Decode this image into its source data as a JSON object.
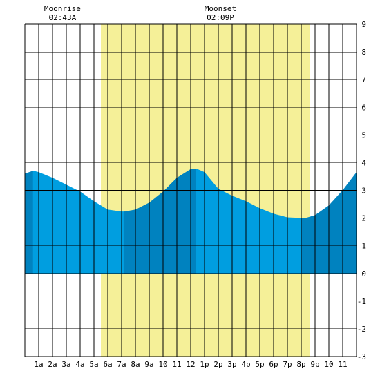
{
  "chart_data": {
    "type": "area",
    "title": "",
    "xlabel": "",
    "ylabel": "",
    "x_range": [
      0,
      24
    ],
    "ylim": [
      -3,
      9
    ],
    "y_ticks": [
      9,
      8,
      7,
      6,
      5,
      4,
      3,
      2,
      1,
      0,
      -1,
      -2,
      -3
    ],
    "x_tick_labels": [
      {
        "hour": 1,
        "label": "1a"
      },
      {
        "hour": 2,
        "label": "2a"
      },
      {
        "hour": 3,
        "label": "3a"
      },
      {
        "hour": 4,
        "label": "4a"
      },
      {
        "hour": 5,
        "label": "5a"
      },
      {
        "hour": 6,
        "label": "6a"
      },
      {
        "hour": 7,
        "label": "7a"
      },
      {
        "hour": 8,
        "label": "8a"
      },
      {
        "hour": 9,
        "label": "9a"
      },
      {
        "hour": 10,
        "label": "10"
      },
      {
        "hour": 11,
        "label": "11"
      },
      {
        "hour": 12,
        "label": "12"
      },
      {
        "hour": 13,
        "label": "1p"
      },
      {
        "hour": 14,
        "label": "2p"
      },
      {
        "hour": 15,
        "label": "3p"
      },
      {
        "hour": 16,
        "label": "4p"
      },
      {
        "hour": 17,
        "label": "5p"
      },
      {
        "hour": 18,
        "label": "6p"
      },
      {
        "hour": 19,
        "label": "7p"
      },
      {
        "hour": 20,
        "label": "8p"
      },
      {
        "hour": 21,
        "label": "9p"
      },
      {
        "hour": 22,
        "label": "10"
      },
      {
        "hour": 23,
        "label": "11"
      }
    ],
    "grid": true,
    "daylight": {
      "start": 5.5,
      "end": 20.6
    },
    "tide_series": {
      "x": [
        0,
        0.6,
        1.0,
        2.0,
        3.0,
        4.0,
        5.0,
        6.0,
        7.0,
        7.2,
        8.0,
        9.0,
        10.0,
        11.0,
        12.0,
        12.4,
        13.0,
        14.0,
        15.0,
        16.0,
        17.0,
        18.0,
        19.0,
        20.0,
        20.4,
        21.0,
        22.0,
        23.0,
        24.0
      ],
      "y": [
        3.6,
        3.7,
        3.65,
        3.45,
        3.2,
        2.95,
        2.6,
        2.3,
        2.23,
        2.23,
        2.3,
        2.55,
        2.95,
        3.45,
        3.76,
        3.78,
        3.65,
        3.05,
        2.8,
        2.6,
        2.35,
        2.15,
        2.02,
        2.0,
        2.01,
        2.1,
        2.45,
        3.0,
        3.65
      ]
    },
    "shading_breaks": [
      0.6,
      7.2,
      12.4,
      20.0
    ],
    "annotations": [
      {
        "label": "Moonrise",
        "time": "02:43A",
        "hour": 2.72
      },
      {
        "label": "Moonset",
        "time": "02:09P",
        "hour": 14.15
      }
    ],
    "colors": {
      "water_light": "#009ee0",
      "water_dark": "#0082bf",
      "daylight": "#f5f098",
      "grid": "#000000",
      "background": "#ffffff"
    }
  }
}
